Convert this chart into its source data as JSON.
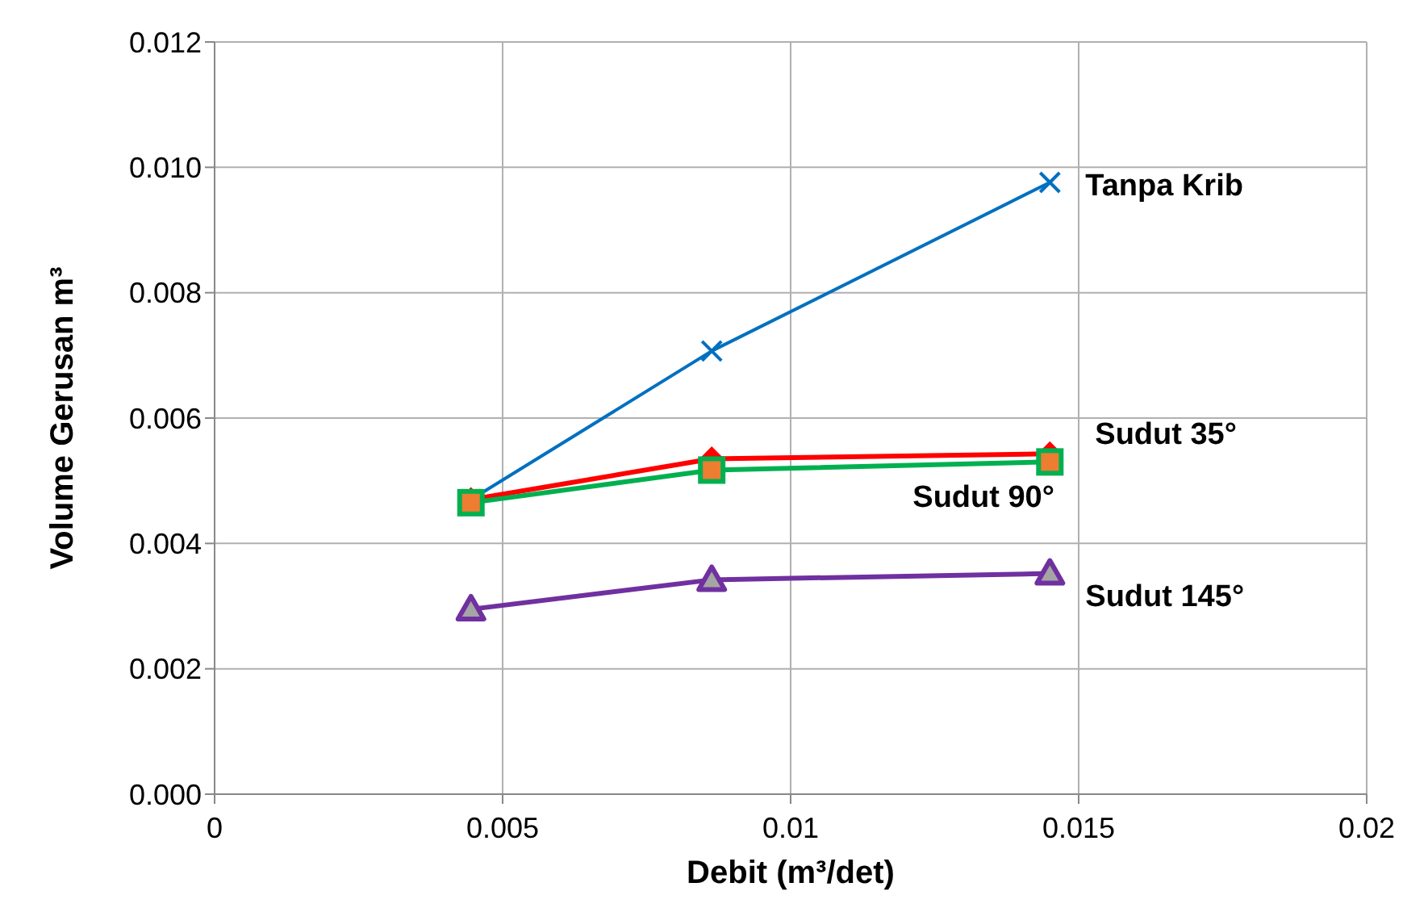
{
  "chart_data": {
    "type": "line",
    "xlabel": "Debit (m³/det)",
    "ylabel": "Volume Gerusan m³",
    "xlim": [
      0,
      0.02
    ],
    "xticks": [
      0,
      0.005,
      0.01,
      0.015,
      0.02
    ],
    "ylim": [
      0,
      0.012
    ],
    "yticks": [
      {
        "value": 0,
        "label": "0.000"
      },
      {
        "value": 0.002,
        "label": "0.002"
      },
      {
        "value": 0.004,
        "label": "0.004"
      },
      {
        "value": 0.006,
        "label": "0.006"
      },
      {
        "value": 0.008,
        "label": "0.008"
      },
      {
        "value": 0.01,
        "label": "0.010"
      },
      {
        "value": 0.012,
        "label": "0.012"
      }
    ],
    "grid": true,
    "legend": false,
    "series": [
      {
        "name": "Tanpa Krib",
        "color": "#0070c0",
        "marker": "cross",
        "x": [
          0.00445,
          0.00863,
          0.0145
        ],
        "values": [
          0.0047,
          0.00707,
          0.00976
        ]
      },
      {
        "name": "Sudut 35°",
        "color": "#ff0000",
        "marker": "diamond",
        "x": [
          0.00445,
          0.00863,
          0.0145
        ],
        "values": [
          0.0047,
          0.00535,
          0.00543
        ]
      },
      {
        "name": "Sudut 90°",
        "color": "#00b050",
        "marker": "square",
        "x": [
          0.00445,
          0.00863,
          0.0145
        ],
        "values": [
          0.00465,
          0.00517,
          0.0053
        ]
      },
      {
        "name": "Sudut 145°",
        "color": "#7030a0",
        "marker": "triangle",
        "x": [
          0.00445,
          0.00863,
          0.0145
        ],
        "values": [
          0.00295,
          0.00342,
          0.00352
        ]
      }
    ]
  }
}
